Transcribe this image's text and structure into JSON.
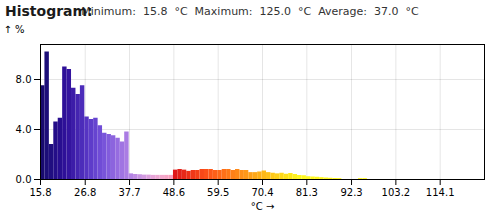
{
  "chart_data": {
    "type": "bar",
    "title": "Histogram:",
    "subtitle": "Minimum:  15.8  °C  Maximum:  125.0  °C  Average:  37.0  °C",
    "xlabel": "°C",
    "ylabel": "%",
    "x": [
      15.8,
      16.89,
      17.98,
      19.07,
      20.16,
      21.25,
      22.34,
      23.43,
      24.52,
      25.61,
      26.7,
      27.79,
      28.88,
      29.97,
      31.06,
      32.15,
      33.24,
      34.33,
      35.42,
      36.51,
      37.6,
      38.69,
      39.78,
      40.87,
      41.96,
      43.05,
      44.14,
      45.23,
      46.32,
      47.41,
      48.5,
      49.59,
      50.68,
      51.77,
      52.86,
      53.95,
      55.04,
      56.13,
      57.22,
      58.31,
      59.4,
      60.49,
      61.58,
      62.67,
      63.76,
      64.85,
      65.94,
      67.03,
      68.12,
      69.21,
      70.3,
      71.39,
      72.48,
      73.57,
      74.66,
      75.75,
      76.84,
      77.93,
      79.02,
      80.11,
      81.2,
      82.29,
      83.38,
      84.47,
      85.56,
      86.65,
      87.74,
      88.83,
      94.0,
      95.1
    ],
    "bin_width": 1.09,
    "values": [
      7.5,
      10.2,
      2.8,
      4.6,
      4.9,
      9.0,
      8.8,
      7.3,
      6.8,
      7.5,
      5.0,
      4.8,
      4.9,
      4.3,
      3.7,
      3.6,
      3.5,
      3.3,
      3.0,
      3.8,
      0.45,
      0.4,
      0.38,
      0.35,
      0.35,
      0.33,
      0.33,
      0.33,
      0.33,
      0.33,
      0.75,
      0.8,
      0.75,
      0.65,
      0.72,
      0.72,
      0.8,
      0.8,
      0.8,
      0.72,
      0.72,
      0.8,
      0.8,
      0.72,
      0.8,
      0.72,
      0.72,
      0.55,
      0.55,
      0.6,
      0.68,
      0.55,
      0.5,
      0.45,
      0.5,
      0.42,
      0.48,
      0.4,
      0.32,
      0.3,
      0.22,
      0.2,
      0.18,
      0.15,
      0.12,
      0.1,
      0.08,
      0.07,
      0.07,
      0.07
    ],
    "colors": [
      "#180a6e",
      "#1c0e78",
      "#200e80",
      "#240e88",
      "#280e90",
      "#2e1098",
      "#34149f",
      "#3c1ca8",
      "#4424b0",
      "#4c2cba",
      "#5634c2",
      "#5e3cca",
      "#6644d0",
      "#704cd6",
      "#7854da",
      "#825cdc",
      "#8c64de",
      "#966ce0",
      "#a074e2",
      "#aa7ce3",
      "#b484e4",
      "#be8ce3",
      "#c894e2",
      "#d29ae0",
      "#dca0dc",
      "#e6a4d8",
      "#eca8d2",
      "#f2a8cc",
      "#f6a4c4",
      "#faa0bc",
      "#e01818",
      "#e42018",
      "#e82818",
      "#ec3018",
      "#f03818",
      "#f44018",
      "#f84818",
      "#fc5018",
      "#fe5818",
      "#fe6018",
      "#fe6818",
      "#fe7018",
      "#fe7818",
      "#fe8018",
      "#fe8818",
      "#fe9018",
      "#fe9818",
      "#fea018",
      "#fea818",
      "#feb018",
      "#feb818",
      "#fec018",
      "#fec818",
      "#fed018",
      "#fed818",
      "#fee018",
      "#fee818",
      "#fff020",
      "#fff820",
      "#fff820",
      "#fff820",
      "#fff820",
      "#fff820",
      "#fff820",
      "#fff820",
      "#fff820",
      "#fff820",
      "#fff820",
      "#fff820",
      "#fff820"
    ],
    "xlim": [
      15.8,
      125.0
    ],
    "xticks": [
      15.8,
      26.8,
      37.7,
      48.6,
      59.5,
      70.4,
      81.3,
      92.3,
      103.2,
      114.1
    ],
    "ylim": [
      0,
      10.8
    ],
    "yticks": [
      {
        "value": 0.0,
        "label": "0.0"
      },
      {
        "value": 4.0,
        "label": "4.0"
      },
      {
        "value": 8.0,
        "label": "8.0"
      }
    ],
    "grid": true
  }
}
